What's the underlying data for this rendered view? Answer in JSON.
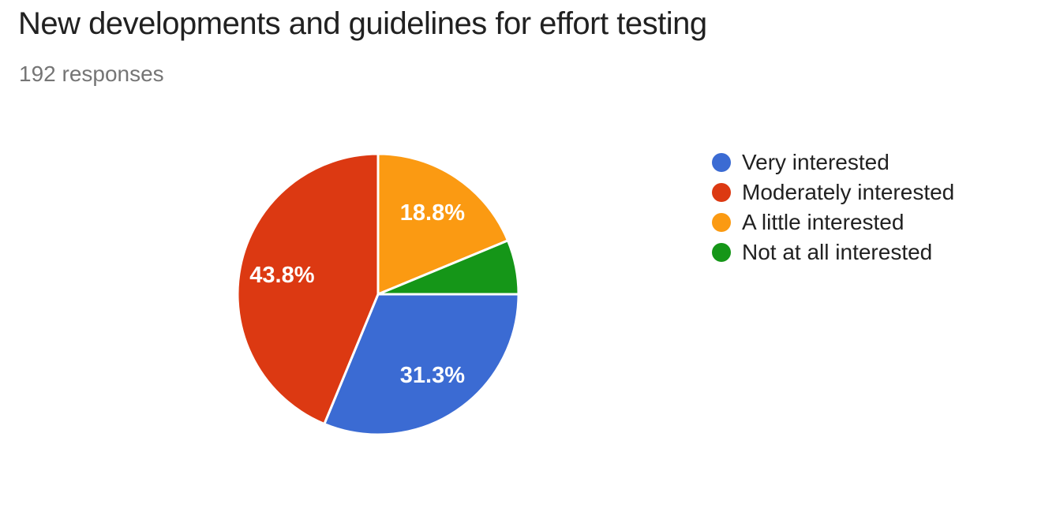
{
  "header": {
    "title": "New developments and guidelines for effort testing",
    "subtitle": "192 responses"
  },
  "colors": {
    "background": "#ffffff",
    "text_primary": "#212121",
    "text_secondary": "#757575",
    "slice_stroke": "#ffffff",
    "slice_label_text": "#ffffff"
  },
  "chart_data": {
    "type": "pie",
    "title": "New developments and guidelines for effort testing",
    "subtitle": "192 responses",
    "legend_position": "right",
    "direction": "clockwise",
    "start_angle_deg": 0,
    "series": [
      {
        "name": "Very interested",
        "color": "#3b6bd3",
        "pct": 31.25,
        "slice_label": "31.3%"
      },
      {
        "name": "Moderately interested",
        "color": "#dc3912",
        "pct": 43.75,
        "slice_label": "43.8%"
      },
      {
        "name": "A little interested",
        "color": "#fb9a12",
        "pct": 18.75,
        "slice_label": "18.8%"
      },
      {
        "name": "Not at all interested",
        "color": "#159618",
        "pct": 6.25,
        "slice_label": ""
      }
    ],
    "draw_order": [
      2,
      3,
      0,
      1
    ]
  }
}
